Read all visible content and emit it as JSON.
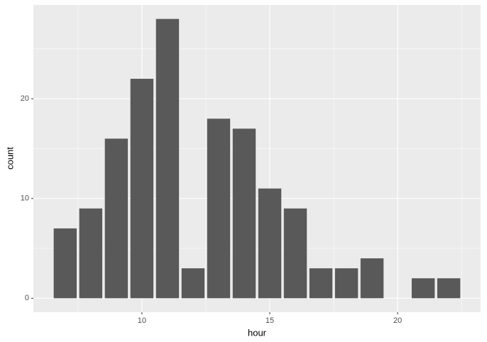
{
  "chart_data": {
    "type": "bar",
    "x_label": "hour",
    "y_label": "count",
    "x": [
      7,
      8,
      9,
      10,
      11,
      12,
      13,
      14,
      15,
      16,
      17,
      18,
      19,
      21,
      22
    ],
    "values": [
      7,
      9,
      16,
      22,
      28,
      3,
      18,
      17,
      11,
      9,
      3,
      3,
      4,
      2,
      2
    ],
    "color": "#595959",
    "xlim": [
      5.755,
      23.245
    ],
    "xticks": [
      10,
      15,
      20
    ],
    "ylim": [
      -1.4,
      29.4
    ],
    "yticks": [
      0,
      10,
      20
    ],
    "grid": true
  }
}
